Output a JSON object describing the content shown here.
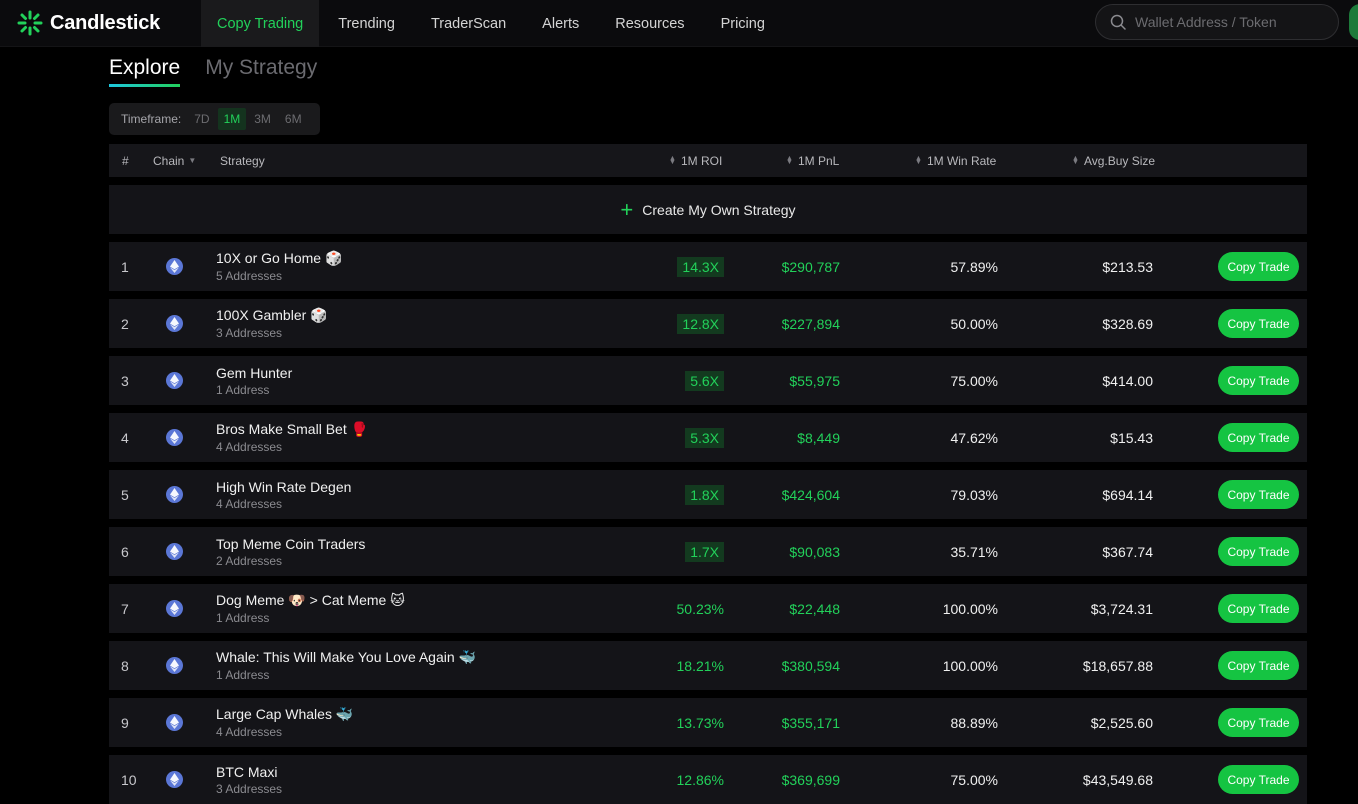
{
  "brand": {
    "name": "Candlestick",
    "accent": "#22d15a"
  },
  "nav": {
    "items": [
      {
        "label": "Copy Trading",
        "active": true
      },
      {
        "label": "Trending"
      },
      {
        "label": "TraderScan"
      },
      {
        "label": "Alerts"
      },
      {
        "label": "Resources"
      },
      {
        "label": "Pricing"
      }
    ],
    "search_placeholder": "Wallet Address / Token"
  },
  "tabs": [
    {
      "label": "Explore",
      "active": true
    },
    {
      "label": "My Strategy"
    }
  ],
  "timeframe": {
    "label": "Timeframe:",
    "options": [
      "7D",
      "1M",
      "3M",
      "6M"
    ],
    "selected": "1M"
  },
  "table": {
    "headers": {
      "rank": "#",
      "chain": "Chain",
      "strategy": "Strategy",
      "roi": "1M ROI",
      "pnl": "1M PnL",
      "win_rate": "1M Win Rate",
      "avg_buy": "Avg.Buy Size"
    },
    "create_label": "Create My Own Strategy",
    "copy_label": "Copy Trade",
    "rows": [
      {
        "rank": "1",
        "chain": "ethereum",
        "name": "10X or Go Home 🎲",
        "sub": "5 Addresses",
        "roi": "14.3X",
        "roi_badge": true,
        "pnl": "$290,787",
        "win_rate": "57.89%",
        "avg_buy": "$213.53"
      },
      {
        "rank": "2",
        "chain": "ethereum",
        "name": "100X Gambler 🎲",
        "sub": "3 Addresses",
        "roi": "12.8X",
        "roi_badge": true,
        "pnl": "$227,894",
        "win_rate": "50.00%",
        "avg_buy": "$328.69"
      },
      {
        "rank": "3",
        "chain": "ethereum",
        "name": "Gem Hunter",
        "sub": "1 Address",
        "roi": "5.6X",
        "roi_badge": true,
        "pnl": "$55,975",
        "win_rate": "75.00%",
        "avg_buy": "$414.00"
      },
      {
        "rank": "4",
        "chain": "ethereum",
        "name": "Bros Make Small Bet 🥊",
        "sub": "4 Addresses",
        "roi": "5.3X",
        "roi_badge": true,
        "pnl": "$8,449",
        "win_rate": "47.62%",
        "avg_buy": "$15.43"
      },
      {
        "rank": "5",
        "chain": "ethereum",
        "name": "High Win Rate Degen",
        "sub": "4 Addresses",
        "roi": "1.8X",
        "roi_badge": true,
        "pnl": "$424,604",
        "win_rate": "79.03%",
        "avg_buy": "$694.14"
      },
      {
        "rank": "6",
        "chain": "ethereum",
        "name": "Top Meme Coin Traders",
        "sub": "2 Addresses",
        "roi": "1.7X",
        "roi_badge": true,
        "pnl": "$90,083",
        "win_rate": "35.71%",
        "avg_buy": "$367.74"
      },
      {
        "rank": "7",
        "chain": "ethereum",
        "name": "Dog Meme 🐶 > Cat Meme 🐱",
        "sub": "1 Address",
        "roi": "50.23%",
        "roi_badge": false,
        "pnl": "$22,448",
        "win_rate": "100.00%",
        "avg_buy": "$3,724.31"
      },
      {
        "rank": "8",
        "chain": "ethereum",
        "name": "Whale: This Will Make You Love Again 🐳",
        "sub": "1 Address",
        "roi": "18.21%",
        "roi_badge": false,
        "pnl": "$380,594",
        "win_rate": "100.00%",
        "avg_buy": "$18,657.88"
      },
      {
        "rank": "9",
        "chain": "ethereum",
        "name": "Large Cap Whales 🐳",
        "sub": "4 Addresses",
        "roi": "13.73%",
        "roi_badge": false,
        "pnl": "$355,171",
        "win_rate": "88.89%",
        "avg_buy": "$2,525.60"
      },
      {
        "rank": "10",
        "chain": "ethereum",
        "name": "BTC Maxi",
        "sub": "3 Addresses",
        "roi": "12.86%",
        "roi_badge": false,
        "pnl": "$369,699",
        "win_rate": "75.00%",
        "avg_buy": "$43,549.68"
      }
    ]
  }
}
